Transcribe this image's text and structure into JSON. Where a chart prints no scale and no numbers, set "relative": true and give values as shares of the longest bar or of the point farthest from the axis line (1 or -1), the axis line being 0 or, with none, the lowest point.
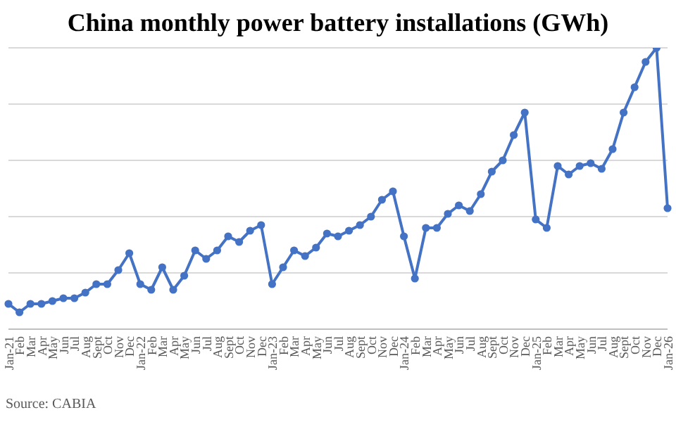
{
  "chart_data": {
    "type": "line",
    "title": "China monthly power battery installations (GWh)",
    "annotations": [
      "Source: CABIA"
    ],
    "categories": [
      "Jan-21",
      "Feb",
      "Mar",
      "Apr",
      "May",
      "Jun",
      "Jul",
      "Aug",
      "Sept",
      "Oct",
      "Nov",
      "Dec",
      "Jan-22",
      "Feb",
      "Mar",
      "Apr",
      "May",
      "Jun",
      "Jul",
      "Aug",
      "Sept",
      "Oct",
      "Nov",
      "Dec",
      "Jan-23",
      "Feb",
      "Mar",
      "Apr",
      "May",
      "Jun",
      "Jul",
      "Aug",
      "Sept",
      "Oct",
      "Nov",
      "Dec",
      "Jan-24",
      "Feb",
      "Mar",
      "Apr",
      "May",
      "Jun",
      "Jul",
      "Aug",
      "Sept",
      "Oct",
      "Nov",
      "Dec",
      "Jan-25",
      "Feb",
      "Mar",
      "Apr",
      "May",
      "Jun",
      "Jul",
      "Aug",
      "Sept",
      "Oct",
      "Nov",
      "Dec",
      "Jan-26"
    ],
    "series": [
      {
        "color": "#4472c4",
        "values": [
          0.09,
          0.06,
          0.09,
          0.09,
          0.1,
          0.11,
          0.11,
          0.13,
          0.16,
          0.16,
          0.21,
          0.27,
          0.16,
          0.14,
          0.22,
          0.14,
          0.19,
          0.28,
          0.25,
          0.28,
          0.33,
          0.31,
          0.35,
          0.37,
          0.16,
          0.22,
          0.28,
          0.26,
          0.29,
          0.34,
          0.33,
          0.35,
          0.37,
          0.4,
          0.46,
          0.49,
          0.33,
          0.18,
          0.36,
          0.36,
          0.41,
          0.44,
          0.42,
          0.48,
          0.56,
          0.6,
          0.69,
          0.77,
          0.39,
          0.36,
          0.58,
          0.55,
          0.58,
          0.59,
          0.57,
          0.64,
          0.77,
          0.86,
          0.95,
          1,
          0.43
        ]
      }
    ],
    "relative": true,
    "grid": "y",
    "legend": false,
    "marker": "circle",
    "line_style": "solid"
  }
}
